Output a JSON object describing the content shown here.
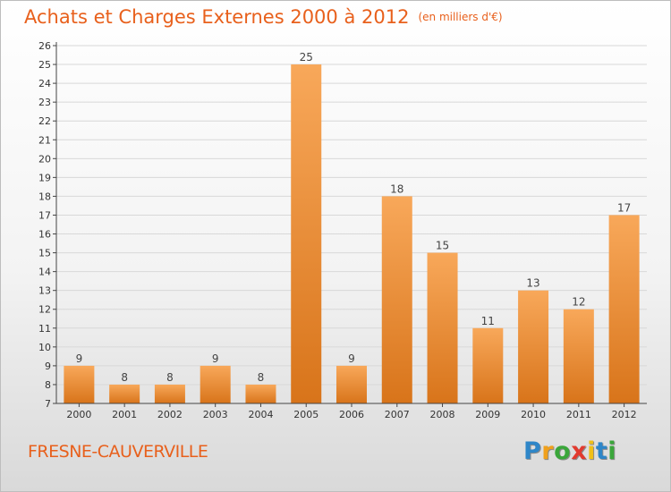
{
  "title": "Achats et Charges Externes 2000 à 2012",
  "subtitle": "(en milliers d'€)",
  "commune": "FRESNE-CAUVERVILLE",
  "brand": {
    "letters": [
      "P",
      "r",
      "o",
      "x",
      "i",
      "t",
      "i"
    ],
    "colors": [
      "#2e86c8",
      "#f0a01c",
      "#3aa63a",
      "#e23a2e",
      "#f0c018",
      "#2e86c8",
      "#3aa63a"
    ]
  },
  "colors": {
    "title": "#e8601c",
    "bar_light": "#f8a85a",
    "bar_dark": "#d8741a",
    "grid": "#d8d8d8",
    "axis": "#444444"
  },
  "chart_data": {
    "type": "bar",
    "categories": [
      "2000",
      "2001",
      "2002",
      "2003",
      "2004",
      "2005",
      "2006",
      "2007",
      "2008",
      "2009",
      "2010",
      "2011",
      "2012"
    ],
    "values": [
      9,
      8,
      8,
      9,
      8,
      25,
      9,
      18,
      15,
      11,
      13,
      12,
      17
    ],
    "ylim": [
      7,
      26
    ],
    "yticks": [
      7,
      8,
      9,
      10,
      11,
      12,
      13,
      14,
      15,
      16,
      17,
      18,
      19,
      20,
      21,
      22,
      23,
      24,
      25,
      26
    ],
    "grid": true,
    "data_labels": true
  }
}
